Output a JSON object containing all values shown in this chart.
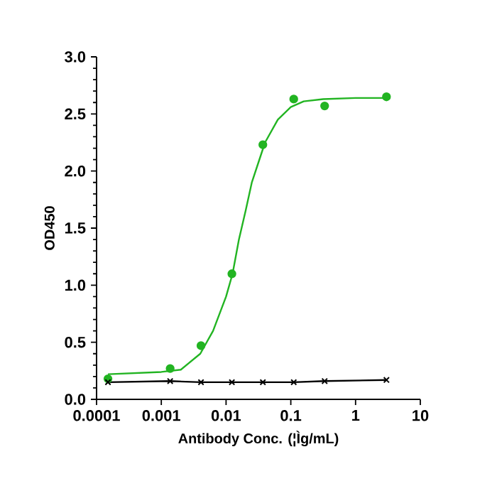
{
  "chart_data": {
    "type": "scatter",
    "xlabel": "Antibody Conc. (¦Ìg/mL)",
    "ylabel": "OD450",
    "log": "x",
    "xlim": [
      0.0001,
      10
    ],
    "xticks": [
      0.0001,
      0.001,
      0.01,
      0.1,
      1,
      10
    ],
    "ylim": [
      0,
      3
    ],
    "yticks": [
      {
        "value": 0,
        "label": "0.0"
      },
      {
        "value": 0.5,
        "label": "0.5"
      },
      {
        "value": 1,
        "label": "1.0"
      },
      {
        "value": 1.5,
        "label": "1.5"
      },
      {
        "value": 2,
        "label": "2.0"
      },
      {
        "value": 2.5,
        "label": "2.5"
      },
      {
        "value": 3,
        "label": "3.0"
      }
    ],
    "grid": false,
    "series": [
      {
        "color": "#22b422",
        "marker": "circle",
        "x": [
          0.00015,
          0.00137,
          0.0041,
          0.0123,
          0.037,
          0.111,
          0.333,
          3
        ],
        "values": [
          0.18,
          0.27,
          0.47,
          1.1,
          2.23,
          2.63,
          2.57,
          2.65
        ]
      },
      {
        "type": "line",
        "color": "#22b422",
        "marker": "none",
        "x": [
          0.00015,
          0.001,
          0.002,
          0.004,
          0.0063,
          0.01,
          0.0126,
          0.0158,
          0.02,
          0.025,
          0.04,
          0.063,
          0.1,
          0.158,
          0.316,
          1,
          3
        ],
        "values": [
          0.22,
          0.24,
          0.26,
          0.4,
          0.6,
          0.9,
          1.1,
          1.4,
          1.65,
          1.9,
          2.25,
          2.45,
          2.56,
          2.61,
          2.63,
          2.64,
          2.64
        ]
      },
      {
        "type": "line",
        "color": "#000000",
        "marker": "cross",
        "x": [
          0.00015,
          0.00137,
          0.0041,
          0.0123,
          0.037,
          0.111,
          0.333,
          3
        ],
        "values": [
          0.15,
          0.16,
          0.15,
          0.15,
          0.15,
          0.15,
          0.16,
          0.17
        ]
      }
    ]
  }
}
